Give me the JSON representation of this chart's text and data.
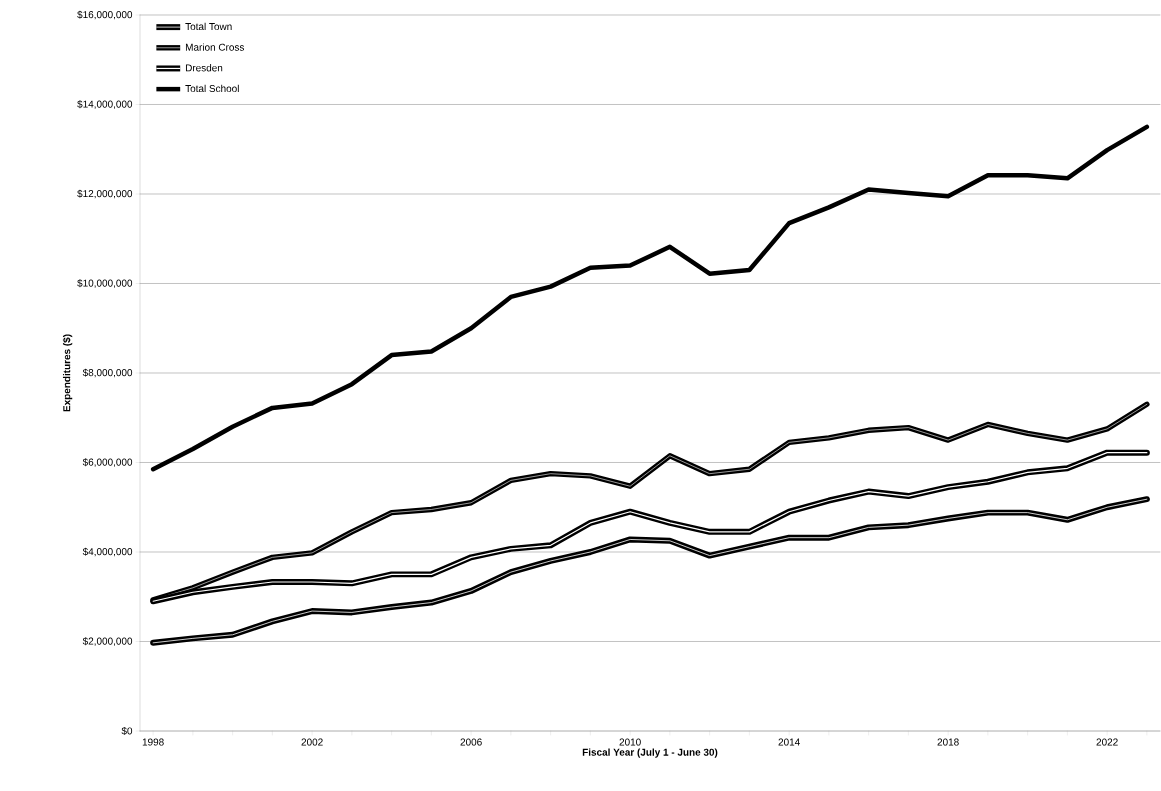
{
  "chart_data": {
    "type": "line",
    "xlabel": "Fiscal Year (July 1 - June 30)",
    "ylabel": "Expenditures ($)",
    "x": [
      1998,
      1999,
      2000,
      2001,
      2002,
      2003,
      2004,
      2005,
      2006,
      2007,
      2008,
      2009,
      2010,
      2011,
      2012,
      2013,
      2014,
      2015,
      2016,
      2017,
      2018,
      2019,
      2020,
      2021,
      2022,
      2023
    ],
    "series": [
      {
        "name": "Total Town",
        "color": "#000000",
        "values": [
          1970000,
          2070000,
          2150000,
          2450000,
          2680000,
          2650000,
          2770000,
          2870000,
          3130000,
          3550000,
          3800000,
          4000000,
          4280000,
          4250000,
          3920000,
          4120000,
          4320000,
          4320000,
          4550000,
          4600000,
          4750000,
          4880000,
          4880000,
          4720000,
          5000000,
          5180000
        ]
      },
      {
        "name": "Marion Cross",
        "color": "#000000",
        "values": [
          2930000,
          3200000,
          3550000,
          3880000,
          3980000,
          4450000,
          4880000,
          4950000,
          5100000,
          5600000,
          5750000,
          5700000,
          5470000,
          6150000,
          5750000,
          5850000,
          6450000,
          6550000,
          6720000,
          6780000,
          6500000,
          6850000,
          6650000,
          6500000,
          6750000,
          7300000
        ]
      },
      {
        "name": "Dresden",
        "color": "#000000",
        "values": [
          2900000,
          3100000,
          3220000,
          3330000,
          3330000,
          3300000,
          3500000,
          3500000,
          3880000,
          4070000,
          4150000,
          4650000,
          4900000,
          4650000,
          4450000,
          4450000,
          4900000,
          5150000,
          5350000,
          5250000,
          5450000,
          5570000,
          5780000,
          5870000,
          6220000,
          6220000
        ]
      },
      {
        "name": "Total School",
        "color": "#000000",
        "values": [
          5850000,
          6300000,
          6800000,
          7220000,
          7320000,
          7750000,
          8400000,
          8480000,
          9000000,
          9700000,
          9930000,
          10350000,
          10400000,
          10820000,
          10220000,
          10300000,
          11350000,
          11700000,
          12100000,
          12020000,
          11950000,
          12420000,
          12420000,
          12350000,
          12980000,
          13500000
        ]
      }
    ],
    "xlim": [
      1997.67,
      2023.33
    ],
    "ylim": [
      0,
      16000000
    ],
    "xticks": [
      1998,
      {
        "value": 1999,
        "label": null
      },
      {
        "value": 2000,
        "label": null
      },
      {
        "value": 2001,
        "label": null
      },
      2002,
      {
        "value": 2003,
        "label": null
      },
      {
        "value": 2004,
        "label": null
      },
      {
        "value": 2005,
        "label": null
      },
      2006,
      {
        "value": 2007,
        "label": null
      },
      {
        "value": 2008,
        "label": null
      },
      {
        "value": 2009,
        "label": null
      },
      2010,
      {
        "value": 2011,
        "label": null
      },
      {
        "value": 2012,
        "label": null
      },
      {
        "value": 2013,
        "label": null
      },
      2014,
      {
        "value": 2015,
        "label": null
      },
      {
        "value": 2016,
        "label": null
      },
      {
        "value": 2017,
        "label": null
      },
      2018,
      {
        "value": 2019,
        "label": null
      },
      {
        "value": 2020,
        "label": null
      },
      {
        "value": 2021,
        "label": null
      },
      2022,
      {
        "value": 2023,
        "label": null
      }
    ],
    "yticks": [
      {
        "value": 0,
        "label": "$0"
      },
      {
        "value": 2000000,
        "label": "$2,000,000"
      },
      {
        "value": 4000000,
        "label": "$4,000,000"
      },
      {
        "value": 6000000,
        "label": "$6,000,000"
      },
      {
        "value": 8000000,
        "label": "$8,000,000"
      },
      {
        "value": 10000000,
        "label": "$10,000,000"
      },
      {
        "value": 12000000,
        "label": "$12,000,000"
      },
      {
        "value": 14000000,
        "label": "$14,000,000"
      },
      {
        "value": 16000000,
        "label": "$16,000,000"
      }
    ],
    "grid": "y",
    "legend": "top left",
    "marker": "none",
    "line_style": "solid"
  }
}
